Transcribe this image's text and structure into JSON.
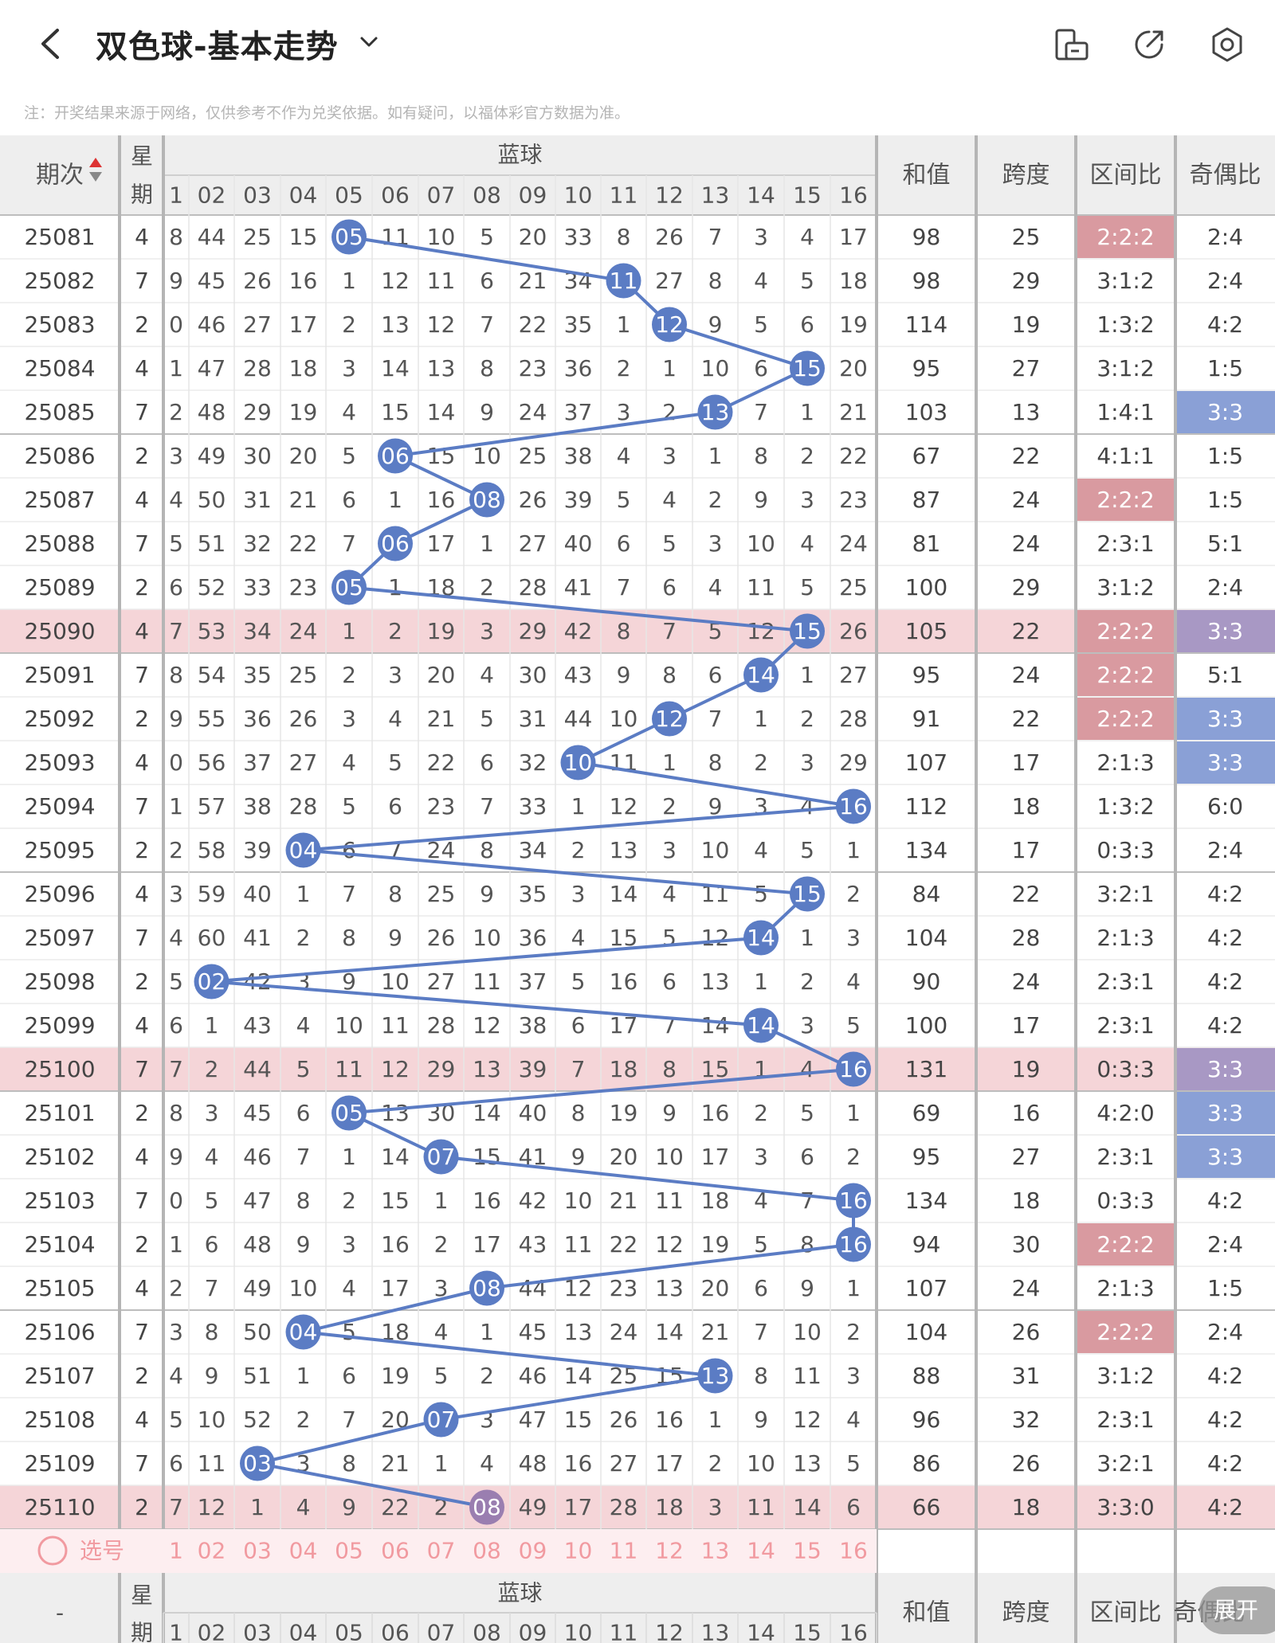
{
  "header": {
    "title": "双色球-基本走势",
    "notice": "注：开奖结果来源于网络，仅供参考不作为兑奖依据。如有疑问，以福体彩官方数据为准。"
  },
  "table": {
    "headers": {
      "issue": "期次",
      "weekday_top": "星",
      "weekday_bottom": "期",
      "blue": "蓝球",
      "sum": "和值",
      "span": "跨度",
      "zone_ratio": "区间比",
      "odd_even_ratio": "奇偶比"
    },
    "blue_numbers": [
      "1",
      "02",
      "03",
      "04",
      "05",
      "06",
      "07",
      "08",
      "09",
      "10",
      "11",
      "12",
      "13",
      "14",
      "15",
      "16"
    ],
    "rows": [
      {
        "issue": "25081",
        "weekday": "4",
        "blue": 5,
        "cells": [
          "8",
          "44",
          "25",
          "15",
          "05",
          "11",
          "10",
          "5",
          "20",
          "33",
          "8",
          "26",
          "7",
          "3",
          "4",
          "17"
        ],
        "sum": "98",
        "span": "25",
        "zone": "2:2:2",
        "oe": "2:4"
      },
      {
        "issue": "25082",
        "weekday": "7",
        "blue": 11,
        "cells": [
          "9",
          "45",
          "26",
          "16",
          "1",
          "12",
          "11",
          "6",
          "21",
          "34",
          "11",
          "27",
          "8",
          "4",
          "5",
          "18"
        ],
        "sum": "98",
        "span": "29",
        "zone": "3:1:2",
        "oe": "2:4"
      },
      {
        "issue": "25083",
        "weekday": "2",
        "blue": 12,
        "cells": [
          "0",
          "46",
          "27",
          "17",
          "2",
          "13",
          "12",
          "7",
          "22",
          "35",
          "1",
          "12",
          "9",
          "5",
          "6",
          "19"
        ],
        "sum": "114",
        "span": "19",
        "zone": "1:3:2",
        "oe": "4:2"
      },
      {
        "issue": "25084",
        "weekday": "4",
        "blue": 15,
        "cells": [
          "1",
          "47",
          "28",
          "18",
          "3",
          "14",
          "13",
          "8",
          "23",
          "36",
          "2",
          "1",
          "10",
          "6",
          "15",
          "20"
        ],
        "sum": "95",
        "span": "27",
        "zone": "3:1:2",
        "oe": "1:5"
      },
      {
        "issue": "25085",
        "weekday": "7",
        "blue": 13,
        "cells": [
          "2",
          "48",
          "29",
          "19",
          "4",
          "15",
          "14",
          "9",
          "24",
          "37",
          "3",
          "2",
          "13",
          "7",
          "1",
          "21"
        ],
        "sum": "103",
        "span": "13",
        "zone": "1:4:1",
        "oe": "3:3"
      },
      {
        "issue": "25086",
        "weekday": "2",
        "blue": 6,
        "cells": [
          "3",
          "49",
          "30",
          "20",
          "5",
          "06",
          "15",
          "10",
          "25",
          "38",
          "4",
          "3",
          "1",
          "8",
          "2",
          "22"
        ],
        "sum": "67",
        "span": "22",
        "zone": "4:1:1",
        "oe": "1:5"
      },
      {
        "issue": "25087",
        "weekday": "4",
        "blue": 8,
        "cells": [
          "4",
          "50",
          "31",
          "21",
          "6",
          "1",
          "16",
          "08",
          "26",
          "39",
          "5",
          "4",
          "2",
          "9",
          "3",
          "23"
        ],
        "sum": "87",
        "span": "24",
        "zone": "2:2:2",
        "oe": "1:5"
      },
      {
        "issue": "25088",
        "weekday": "7",
        "blue": 6,
        "cells": [
          "5",
          "51",
          "32",
          "22",
          "7",
          "06",
          "17",
          "1",
          "27",
          "40",
          "6",
          "5",
          "3",
          "10",
          "4",
          "24"
        ],
        "sum": "81",
        "span": "24",
        "zone": "2:3:1",
        "oe": "5:1"
      },
      {
        "issue": "25089",
        "weekday": "2",
        "blue": 5,
        "cells": [
          "6",
          "52",
          "33",
          "23",
          "05",
          "1",
          "18",
          "2",
          "28",
          "41",
          "7",
          "6",
          "4",
          "11",
          "5",
          "25"
        ],
        "sum": "100",
        "span": "29",
        "zone": "3:1:2",
        "oe": "2:4"
      },
      {
        "issue": "25090",
        "weekday": "4",
        "blue": 15,
        "cells": [
          "7",
          "53",
          "34",
          "24",
          "1",
          "2",
          "19",
          "3",
          "29",
          "42",
          "8",
          "7",
          "5",
          "12",
          "15",
          "26"
        ],
        "sum": "105",
        "span": "22",
        "zone": "2:2:2",
        "oe": "3:3"
      },
      {
        "issue": "25091",
        "weekday": "7",
        "blue": 14,
        "cells": [
          "8",
          "54",
          "35",
          "25",
          "2",
          "3",
          "20",
          "4",
          "30",
          "43",
          "9",
          "8",
          "6",
          "14",
          "1",
          "27"
        ],
        "sum": "95",
        "span": "24",
        "zone": "2:2:2",
        "oe": "5:1"
      },
      {
        "issue": "25092",
        "weekday": "2",
        "blue": 12,
        "cells": [
          "9",
          "55",
          "36",
          "26",
          "3",
          "4",
          "21",
          "5",
          "31",
          "44",
          "10",
          "12",
          "7",
          "1",
          "2",
          "28"
        ],
        "sum": "91",
        "span": "22",
        "zone": "2:2:2",
        "oe": "3:3"
      },
      {
        "issue": "25093",
        "weekday": "4",
        "blue": 10,
        "cells": [
          "0",
          "56",
          "37",
          "27",
          "4",
          "5",
          "22",
          "6",
          "32",
          "10",
          "11",
          "1",
          "8",
          "2",
          "3",
          "29"
        ],
        "sum": "107",
        "span": "17",
        "zone": "2:1:3",
        "oe": "3:3"
      },
      {
        "issue": "25094",
        "weekday": "7",
        "blue": 16,
        "cells": [
          "1",
          "57",
          "38",
          "28",
          "5",
          "6",
          "23",
          "7",
          "33",
          "1",
          "12",
          "2",
          "9",
          "3",
          "4",
          "16"
        ],
        "sum": "112",
        "span": "18",
        "zone": "1:3:2",
        "oe": "6:0"
      },
      {
        "issue": "25095",
        "weekday": "2",
        "blue": 4,
        "cells": [
          "2",
          "58",
          "39",
          "04",
          "6",
          "7",
          "24",
          "8",
          "34",
          "2",
          "13",
          "3",
          "10",
          "4",
          "5",
          "1"
        ],
        "sum": "134",
        "span": "17",
        "zone": "0:3:3",
        "oe": "2:4"
      },
      {
        "issue": "25096",
        "weekday": "4",
        "blue": 15,
        "cells": [
          "3",
          "59",
          "40",
          "1",
          "7",
          "8",
          "25",
          "9",
          "35",
          "3",
          "14",
          "4",
          "11",
          "5",
          "15",
          "2"
        ],
        "sum": "84",
        "span": "22",
        "zone": "3:2:1",
        "oe": "4:2"
      },
      {
        "issue": "25097",
        "weekday": "7",
        "blue": 14,
        "cells": [
          "4",
          "60",
          "41",
          "2",
          "8",
          "9",
          "26",
          "10",
          "36",
          "4",
          "15",
          "5",
          "12",
          "14",
          "1",
          "3"
        ],
        "sum": "104",
        "span": "28",
        "zone": "2:1:3",
        "oe": "4:2"
      },
      {
        "issue": "25098",
        "weekday": "2",
        "blue": 2,
        "cells": [
          "5",
          "02",
          "42",
          "3",
          "9",
          "10",
          "27",
          "11",
          "37",
          "5",
          "16",
          "6",
          "13",
          "1",
          "2",
          "4"
        ],
        "sum": "90",
        "span": "24",
        "zone": "2:3:1",
        "oe": "4:2"
      },
      {
        "issue": "25099",
        "weekday": "4",
        "blue": 14,
        "cells": [
          "6",
          "1",
          "43",
          "4",
          "10",
          "11",
          "28",
          "12",
          "38",
          "6",
          "17",
          "7",
          "14",
          "14",
          "3",
          "5"
        ],
        "sum": "100",
        "span": "17",
        "zone": "2:3:1",
        "oe": "4:2"
      },
      {
        "issue": "25100",
        "weekday": "7",
        "blue": 16,
        "cells": [
          "7",
          "2",
          "44",
          "5",
          "11",
          "12",
          "29",
          "13",
          "39",
          "7",
          "18",
          "8",
          "15",
          "1",
          "4",
          "16"
        ],
        "sum": "131",
        "span": "19",
        "zone": "0:3:3",
        "oe": "3:3"
      },
      {
        "issue": "25101",
        "weekday": "2",
        "blue": 5,
        "cells": [
          "8",
          "3",
          "45",
          "6",
          "05",
          "13",
          "30",
          "14",
          "40",
          "8",
          "19",
          "9",
          "16",
          "2",
          "5",
          "1"
        ],
        "sum": "69",
        "span": "16",
        "zone": "4:2:0",
        "oe": "3:3"
      },
      {
        "issue": "25102",
        "weekday": "4",
        "blue": 7,
        "cells": [
          "9",
          "4",
          "46",
          "7",
          "1",
          "14",
          "07",
          "15",
          "41",
          "9",
          "20",
          "10",
          "17",
          "3",
          "6",
          "2"
        ],
        "sum": "95",
        "span": "27",
        "zone": "2:3:1",
        "oe": "3:3"
      },
      {
        "issue": "25103",
        "weekday": "7",
        "blue": 16,
        "cells": [
          "0",
          "5",
          "47",
          "8",
          "2",
          "15",
          "1",
          "16",
          "42",
          "10",
          "21",
          "11",
          "18",
          "4",
          "7",
          "16"
        ],
        "sum": "134",
        "span": "18",
        "zone": "0:3:3",
        "oe": "4:2"
      },
      {
        "issue": "25104",
        "weekday": "2",
        "blue": 16,
        "cells": [
          "1",
          "6",
          "48",
          "9",
          "3",
          "16",
          "2",
          "17",
          "43",
          "11",
          "22",
          "12",
          "19",
          "5",
          "8",
          "16"
        ],
        "sum": "94",
        "span": "30",
        "zone": "2:2:2",
        "oe": "2:4"
      },
      {
        "issue": "25105",
        "weekday": "4",
        "blue": 8,
        "cells": [
          "2",
          "7",
          "49",
          "10",
          "4",
          "17",
          "3",
          "08",
          "44",
          "12",
          "23",
          "13",
          "20",
          "6",
          "9",
          "1"
        ],
        "sum": "107",
        "span": "24",
        "zone": "2:1:3",
        "oe": "1:5"
      },
      {
        "issue": "25106",
        "weekday": "7",
        "blue": 4,
        "cells": [
          "3",
          "8",
          "50",
          "04",
          "5",
          "18",
          "4",
          "1",
          "45",
          "13",
          "24",
          "14",
          "21",
          "7",
          "10",
          "2"
        ],
        "sum": "104",
        "span": "26",
        "zone": "2:2:2",
        "oe": "2:4"
      },
      {
        "issue": "25107",
        "weekday": "2",
        "blue": 13,
        "cells": [
          "4",
          "9",
          "51",
          "1",
          "6",
          "19",
          "5",
          "2",
          "46",
          "14",
          "25",
          "15",
          "13",
          "8",
          "11",
          "3"
        ],
        "sum": "88",
        "span": "31",
        "zone": "3:1:2",
        "oe": "4:2"
      },
      {
        "issue": "25108",
        "weekday": "4",
        "blue": 7,
        "cells": [
          "5",
          "10",
          "52",
          "2",
          "7",
          "20",
          "07",
          "3",
          "47",
          "15",
          "26",
          "16",
          "1",
          "9",
          "12",
          "4"
        ],
        "sum": "96",
        "span": "32",
        "zone": "2:3:1",
        "oe": "4:2"
      },
      {
        "issue": "25109",
        "weekday": "7",
        "blue": 3,
        "cells": [
          "6",
          "11",
          "03",
          "3",
          "8",
          "21",
          "1",
          "4",
          "48",
          "16",
          "27",
          "17",
          "2",
          "10",
          "13",
          "5"
        ],
        "sum": "86",
        "span": "26",
        "zone": "3:2:1",
        "oe": "4:2"
      },
      {
        "issue": "25110",
        "weekday": "2",
        "blue": 8,
        "cells": [
          "7",
          "12",
          "1",
          "4",
          "9",
          "22",
          "2",
          "08",
          "49",
          "17",
          "28",
          "18",
          "3",
          "11",
          "14",
          "6"
        ],
        "sum": "66",
        "span": "18",
        "zone": "3:3:0",
        "oe": "4:2"
      }
    ],
    "selector": {
      "label": "选号"
    },
    "footer_issue": "-"
  },
  "expand_label": "展开",
  "colors": {
    "ball": "#5b7cc4",
    "line": "#5b7cc4",
    "ball_last": "#9a7eb0",
    "header_bg": "#eeeeee",
    "highlight_row": "#f5d5d8",
    "zone_highlight": "#d99aa0",
    "oe_highlight": "#8aa0d6",
    "oe_highlight_row": "#a898c4",
    "selector_text": "#f19aa0",
    "selector_bg": "#fdeef0"
  },
  "icons": [
    "back-icon",
    "dropdown-arrow-icon",
    "phone-rotate-icon",
    "share-icon",
    "settings-gear-icon"
  ]
}
